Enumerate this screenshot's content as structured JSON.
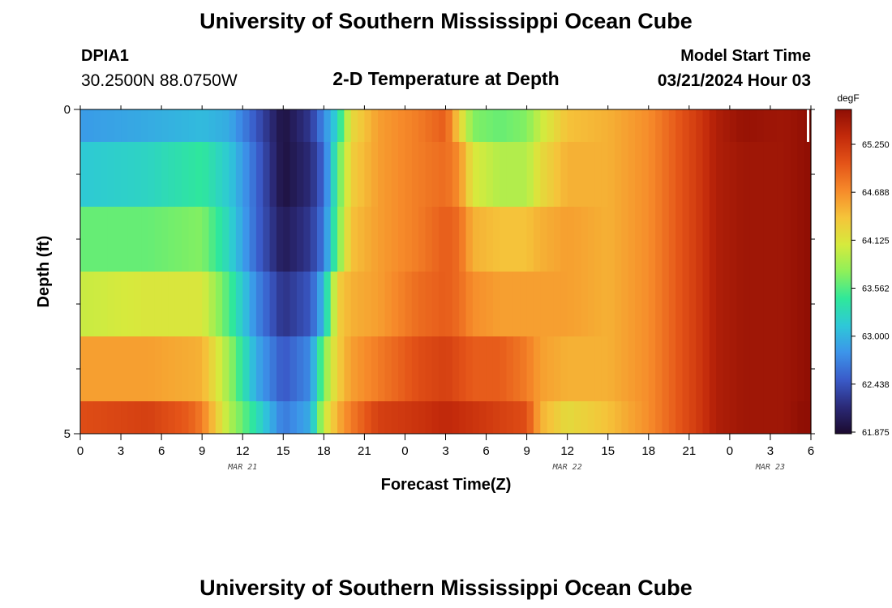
{
  "header": {
    "title": "University of Southern Mississippi Ocean Cube",
    "station_id": "DPIA1",
    "coords": "30.2500N  88.0750W",
    "plot_title": "2-D Temperature at Depth",
    "model_label": "Model Start Time",
    "model_time": "03/21/2024 Hour 03"
  },
  "footer": {
    "title": "University of Southern Mississippi Ocean Cube"
  },
  "chart_data": {
    "type": "heatmap",
    "title": "2-D Temperature at Depth",
    "xlabel": "Forecast Time(Z)",
    "ylabel": "Depth (ft)",
    "x_unit": "hours since MAR 21 00Z",
    "xlim": [
      0,
      54
    ],
    "ylim": [
      5,
      0
    ],
    "y_ticks": [
      "0",
      "5"
    ],
    "x_ticks": [
      {
        "h": 0,
        "label": "0"
      },
      {
        "h": 3,
        "label": "3"
      },
      {
        "h": 6,
        "label": "6"
      },
      {
        "h": 9,
        "label": "9"
      },
      {
        "h": 12,
        "label": "12"
      },
      {
        "h": 15,
        "label": "15"
      },
      {
        "h": 18,
        "label": "18"
      },
      {
        "h": 21,
        "label": "21"
      },
      {
        "h": 24,
        "label": "0"
      },
      {
        "h": 27,
        "label": "3"
      },
      {
        "h": 30,
        "label": "6"
      },
      {
        "h": 33,
        "label": "9"
      },
      {
        "h": 36,
        "label": "12"
      },
      {
        "h": 39,
        "label": "15"
      },
      {
        "h": 42,
        "label": "18"
      },
      {
        "h": 45,
        "label": "21"
      },
      {
        "h": 48,
        "label": "0"
      },
      {
        "h": 51,
        "label": "3"
      },
      {
        "h": 54,
        "label": "6"
      }
    ],
    "date_labels": [
      {
        "h": 12,
        "label": "MAR 21"
      },
      {
        "h": 36,
        "label": "MAR 22"
      },
      {
        "h": 51,
        "label": "MAR 23"
      }
    ],
    "depth_layers": [
      {
        "top": 0.0,
        "bottom": 0.5,
        "knots": [
          [
            0,
            62.9
          ],
          [
            5,
            63.0
          ],
          [
            9,
            63.1
          ],
          [
            11,
            63.0
          ],
          [
            13,
            62.5
          ],
          [
            15,
            61.95
          ],
          [
            17,
            62.3
          ],
          [
            18,
            62.8
          ],
          [
            19,
            63.3
          ],
          [
            20,
            64.3
          ],
          [
            22,
            64.7
          ],
          [
            25,
            64.9
          ],
          [
            27,
            65.1
          ],
          [
            28,
            64.4
          ],
          [
            29,
            63.8
          ],
          [
            31,
            63.7
          ],
          [
            33,
            63.8
          ],
          [
            34,
            64.1
          ],
          [
            36,
            64.5
          ],
          [
            39,
            64.6
          ],
          [
            42,
            64.8
          ],
          [
            44,
            65.1
          ],
          [
            46,
            65.4
          ],
          [
            47,
            65.6
          ],
          [
            49,
            65.75
          ],
          [
            52,
            65.7
          ],
          [
            54,
            65.8
          ]
        ]
      },
      {
        "top": 0.5,
        "bottom": 1.5,
        "knots": [
          [
            0,
            63.2
          ],
          [
            5,
            63.3
          ],
          [
            9,
            63.5
          ],
          [
            11,
            63.2
          ],
          [
            13,
            62.6
          ],
          [
            15,
            61.95
          ],
          [
            17,
            62.2
          ],
          [
            18,
            62.6
          ],
          [
            19,
            63.6
          ],
          [
            20,
            64.4
          ],
          [
            22,
            64.7
          ],
          [
            25,
            64.9
          ],
          [
            27,
            65.0
          ],
          [
            28,
            64.8
          ],
          [
            29,
            64.2
          ],
          [
            31,
            64.0
          ],
          [
            33,
            64.0
          ],
          [
            34,
            64.3
          ],
          [
            36,
            64.6
          ],
          [
            39,
            64.6
          ],
          [
            42,
            64.8
          ],
          [
            44,
            65.1
          ],
          [
            46,
            65.4
          ],
          [
            47,
            65.6
          ],
          [
            49,
            65.7
          ],
          [
            52,
            65.7
          ],
          [
            54,
            65.8
          ]
        ]
      },
      {
        "top": 1.5,
        "bottom": 2.5,
        "knots": [
          [
            0,
            63.7
          ],
          [
            5,
            63.7
          ],
          [
            9,
            63.8
          ],
          [
            11,
            63.3
          ],
          [
            13,
            62.6
          ],
          [
            15,
            62.05
          ],
          [
            17,
            62.3
          ],
          [
            18,
            62.7
          ],
          [
            19,
            63.7
          ],
          [
            20,
            64.5
          ],
          [
            22,
            64.7
          ],
          [
            25,
            64.9
          ],
          [
            27,
            65.1
          ],
          [
            28,
            65.0
          ],
          [
            29,
            64.6
          ],
          [
            31,
            64.5
          ],
          [
            33,
            64.5
          ],
          [
            34,
            64.6
          ],
          [
            36,
            64.7
          ],
          [
            39,
            64.6
          ],
          [
            42,
            64.8
          ],
          [
            44,
            65.1
          ],
          [
            46,
            65.4
          ],
          [
            47,
            65.6
          ],
          [
            49,
            65.7
          ],
          [
            52,
            65.7
          ],
          [
            54,
            65.8
          ]
        ]
      },
      {
        "top": 2.5,
        "bottom": 3.5,
        "knots": [
          [
            0,
            64.1
          ],
          [
            5,
            64.2
          ],
          [
            9,
            64.2
          ],
          [
            11,
            63.6
          ],
          [
            13,
            62.8
          ],
          [
            15,
            62.25
          ],
          [
            17,
            62.5
          ],
          [
            18,
            63.1
          ],
          [
            19,
            64.4
          ],
          [
            20,
            64.6
          ],
          [
            22,
            64.7
          ],
          [
            25,
            65.0
          ],
          [
            27,
            65.1
          ],
          [
            28,
            65.0
          ],
          [
            29,
            64.8
          ],
          [
            31,
            64.7
          ],
          [
            33,
            64.7
          ],
          [
            34,
            64.7
          ],
          [
            36,
            64.7
          ],
          [
            39,
            64.6
          ],
          [
            42,
            64.8
          ],
          [
            44,
            65.1
          ],
          [
            46,
            65.4
          ],
          [
            47,
            65.6
          ],
          [
            49,
            65.7
          ],
          [
            52,
            65.7
          ],
          [
            54,
            65.8
          ]
        ]
      },
      {
        "top": 3.5,
        "bottom": 4.5,
        "knots": [
          [
            0,
            64.7
          ],
          [
            5,
            64.7
          ],
          [
            9,
            64.6
          ],
          [
            11,
            63.9
          ],
          [
            13,
            63.0
          ],
          [
            15,
            62.5
          ],
          [
            17,
            62.8
          ],
          [
            18,
            63.8
          ],
          [
            19,
            64.4
          ],
          [
            20,
            64.7
          ],
          [
            22,
            64.9
          ],
          [
            25,
            65.2
          ],
          [
            27,
            65.3
          ],
          [
            28,
            65.2
          ],
          [
            29,
            65.1
          ],
          [
            31,
            65.1
          ],
          [
            33,
            64.9
          ],
          [
            34,
            64.7
          ],
          [
            36,
            64.6
          ],
          [
            39,
            64.6
          ],
          [
            42,
            64.8
          ],
          [
            44,
            65.1
          ],
          [
            46,
            65.4
          ],
          [
            47,
            65.6
          ],
          [
            49,
            65.7
          ],
          [
            52,
            65.7
          ],
          [
            54,
            65.8
          ]
        ]
      },
      {
        "top": 4.5,
        "bottom": 5.0,
        "knots": [
          [
            0,
            65.2
          ],
          [
            5,
            65.3
          ],
          [
            8,
            65.1
          ],
          [
            9,
            64.9
          ],
          [
            11,
            64.0
          ],
          [
            13,
            63.4
          ],
          [
            15,
            62.7
          ],
          [
            17,
            63.0
          ],
          [
            18,
            64.1
          ],
          [
            19,
            64.6
          ],
          [
            20,
            64.9
          ],
          [
            22,
            65.3
          ],
          [
            25,
            65.4
          ],
          [
            27,
            65.5
          ],
          [
            29,
            65.4
          ],
          [
            31,
            65.3
          ],
          [
            33,
            65.2
          ],
          [
            34,
            64.6
          ],
          [
            36,
            64.3
          ],
          [
            39,
            64.5
          ],
          [
            42,
            64.8
          ],
          [
            44,
            65.1
          ],
          [
            46,
            65.4
          ],
          [
            47,
            65.6
          ],
          [
            49,
            65.7
          ],
          [
            52,
            65.7
          ],
          [
            54,
            65.85
          ]
        ]
      }
    ],
    "colorbar": {
      "unit": "degF",
      "min": 61.875,
      "max": 65.8,
      "ticks": [
        "65.250",
        "64.688",
        "64.125",
        "63.562",
        "63.000",
        "62.438",
        "61.875"
      ],
      "colors": [
        "#1b0a2e",
        "#2b2a78",
        "#3a5bc9",
        "#3c94ea",
        "#2ec8d8",
        "#2fe89a",
        "#8ef05a",
        "#d6ea3d",
        "#f5c43a",
        "#f68a2a",
        "#e45418",
        "#c32a0b",
        "#8f0e04"
      ]
    }
  }
}
